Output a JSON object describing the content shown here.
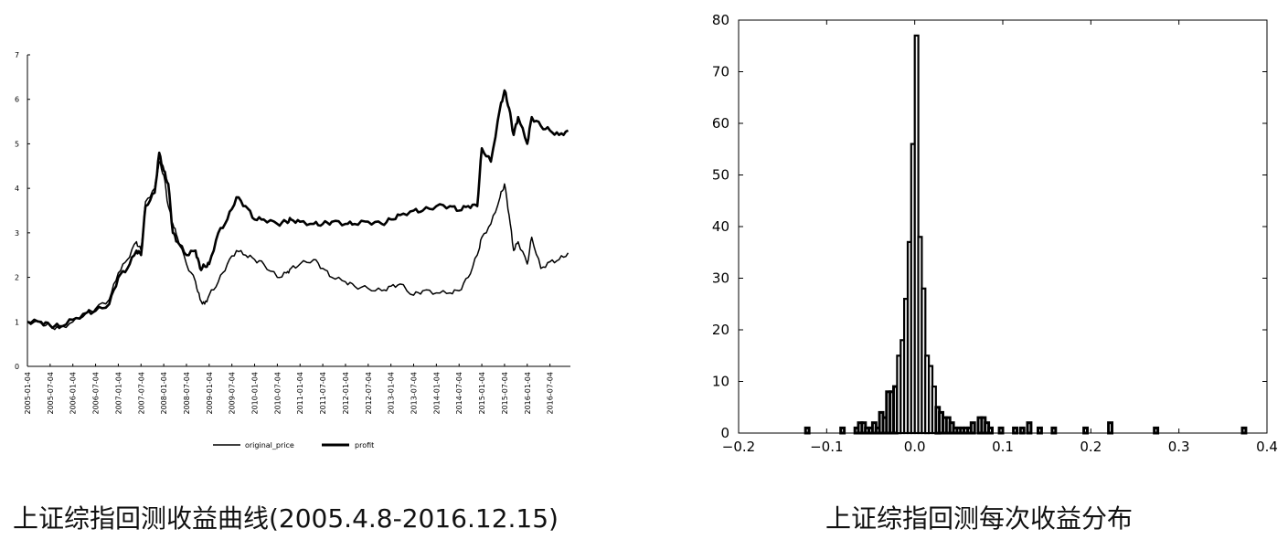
{
  "captions": {
    "left": "上证综指回测收益曲线(2005.4.8-2016.12.15)",
    "right": "上证综指回测每次收益分布"
  },
  "chart_data": [
    {
      "type": "line",
      "title": "",
      "xlabel": "",
      "ylabel": "",
      "ylim": [
        0,
        7
      ],
      "yticks": [
        "0",
        "1",
        "2",
        "3",
        "4",
        "5",
        "6",
        "7"
      ],
      "xtick_labels": [
        "2005-01-04",
        "2005-07-04",
        "2006-01-04",
        "2006-07-04",
        "2007-01-04",
        "2007-07-04",
        "2008-01-04",
        "2008-07-04",
        "2009-01-04",
        "2009-07-04",
        "2010-01-04",
        "2010-07-04",
        "2011-01-04",
        "2011-07-04",
        "2012-01-04",
        "2012-07-04",
        "2013-01-04",
        "2013-07-04",
        "2014-01-04",
        "2014-07-04",
        "2015-01-04",
        "2015-07-04",
        "2016-01-04",
        "2016-07-04"
      ],
      "legend": {
        "placement": "bottom-center",
        "entries": [
          "original_price",
          "profit"
        ]
      },
      "series": [
        {
          "name": "original_price",
          "x": [
            2005.0,
            2005.3,
            2005.5,
            2005.7,
            2006.0,
            2006.3,
            2006.5,
            2006.8,
            2007.0,
            2007.2,
            2007.4,
            2007.5,
            2007.6,
            2007.8,
            2007.9,
            2008.0,
            2008.1,
            2008.2,
            2008.3,
            2008.5,
            2008.7,
            2008.8,
            2008.9,
            2009.0,
            2009.2,
            2009.4,
            2009.6,
            2009.8,
            2010.0,
            2010.2,
            2010.5,
            2010.7,
            2010.8,
            2011.0,
            2011.3,
            2011.5,
            2011.7,
            2012.0,
            2012.2,
            2012.5,
            2012.8,
            2013.0,
            2013.2,
            2013.5,
            2013.7,
            2014.0,
            2014.3,
            2014.5,
            2014.7,
            2014.9,
            2015.0,
            2015.2,
            2015.4,
            2015.5,
            2015.6,
            2015.7,
            2015.8,
            2016.0,
            2016.1,
            2016.3,
            2016.5,
            2016.7,
            2016.9
          ],
          "y": [
            1.0,
            0.97,
            0.9,
            0.85,
            1.0,
            1.2,
            1.3,
            1.5,
            2.1,
            2.4,
            2.8,
            2.6,
            3.7,
            4.0,
            4.6,
            4.3,
            3.6,
            3.2,
            2.9,
            2.3,
            1.9,
            1.5,
            1.4,
            1.6,
            1.9,
            2.3,
            2.6,
            2.5,
            2.4,
            2.3,
            2.0,
            2.1,
            2.2,
            2.3,
            2.4,
            2.2,
            2.0,
            1.9,
            1.8,
            1.75,
            1.7,
            1.8,
            1.85,
            1.6,
            1.7,
            1.65,
            1.65,
            1.7,
            2.0,
            2.5,
            2.9,
            3.2,
            3.8,
            4.1,
            3.4,
            2.6,
            2.8,
            2.3,
            2.9,
            2.2,
            2.35,
            2.4,
            2.55
          ]
        },
        {
          "name": "profit",
          "x": [
            2005.0,
            2005.3,
            2005.5,
            2005.7,
            2006.0,
            2006.3,
            2006.5,
            2006.8,
            2007.0,
            2007.2,
            2007.4,
            2007.5,
            2007.6,
            2007.8,
            2007.9,
            2008.0,
            2008.1,
            2008.2,
            2008.3,
            2008.5,
            2008.7,
            2008.8,
            2008.9,
            2009.0,
            2009.2,
            2009.4,
            2009.6,
            2009.8,
            2010.0,
            2010.2,
            2010.5,
            2010.7,
            2010.8,
            2011.0,
            2011.3,
            2011.5,
            2011.7,
            2012.0,
            2012.2,
            2012.5,
            2012.8,
            2013.0,
            2013.2,
            2013.5,
            2013.7,
            2014.0,
            2014.3,
            2014.5,
            2014.7,
            2014.9,
            2015.0,
            2015.2,
            2015.4,
            2015.5,
            2015.6,
            2015.7,
            2015.8,
            2016.0,
            2016.1,
            2016.3,
            2016.5,
            2016.7,
            2016.9
          ],
          "y": [
            1.0,
            1.0,
            0.92,
            0.9,
            1.05,
            1.2,
            1.25,
            1.4,
            2.0,
            2.2,
            2.6,
            2.5,
            3.6,
            3.9,
            4.8,
            4.4,
            4.1,
            3.0,
            2.8,
            2.5,
            2.6,
            2.2,
            2.25,
            2.3,
            3.0,
            3.3,
            3.8,
            3.6,
            3.3,
            3.3,
            3.2,
            3.25,
            3.3,
            3.25,
            3.2,
            3.2,
            3.25,
            3.2,
            3.2,
            3.25,
            3.2,
            3.3,
            3.4,
            3.5,
            3.5,
            3.6,
            3.6,
            3.5,
            3.6,
            3.6,
            4.9,
            4.6,
            5.8,
            6.2,
            5.8,
            5.2,
            5.6,
            5.0,
            5.6,
            5.4,
            5.3,
            5.2,
            5.3
          ]
        }
      ]
    },
    {
      "type": "bar",
      "title": "",
      "xlabel": "",
      "ylabel": "",
      "xlim": [
        -0.2,
        0.4
      ],
      "ylim": [
        0,
        80
      ],
      "xticks": [
        "−0.2",
        "−0.1",
        "0.0",
        "0.1",
        "0.2",
        "0.3",
        "0.4"
      ],
      "yticks": [
        "0",
        "10",
        "20",
        "30",
        "40",
        "50",
        "60",
        "70",
        "80"
      ],
      "bin_width": 0.004,
      "bins": [
        {
          "x": -0.124,
          "y": 1
        },
        {
          "x": -0.084,
          "y": 1
        },
        {
          "x": -0.068,
          "y": 1
        },
        {
          "x": -0.064,
          "y": 2
        },
        {
          "x": -0.06,
          "y": 2
        },
        {
          "x": -0.056,
          "y": 1
        },
        {
          "x": -0.052,
          "y": 1
        },
        {
          "x": -0.048,
          "y": 2
        },
        {
          "x": -0.044,
          "y": 1
        },
        {
          "x": -0.04,
          "y": 4
        },
        {
          "x": -0.036,
          "y": 3
        },
        {
          "x": -0.032,
          "y": 8
        },
        {
          "x": -0.028,
          "y": 8
        },
        {
          "x": -0.024,
          "y": 9
        },
        {
          "x": -0.02,
          "y": 15
        },
        {
          "x": -0.016,
          "y": 18
        },
        {
          "x": -0.012,
          "y": 26
        },
        {
          "x": -0.008,
          "y": 37
        },
        {
          "x": -0.004,
          "y": 56
        },
        {
          "x": 0.0,
          "y": 77
        },
        {
          "x": 0.004,
          "y": 38
        },
        {
          "x": 0.008,
          "y": 28
        },
        {
          "x": 0.012,
          "y": 15
        },
        {
          "x": 0.016,
          "y": 13
        },
        {
          "x": 0.02,
          "y": 9
        },
        {
          "x": 0.024,
          "y": 5
        },
        {
          "x": 0.028,
          "y": 4
        },
        {
          "x": 0.032,
          "y": 3
        },
        {
          "x": 0.036,
          "y": 3
        },
        {
          "x": 0.04,
          "y": 2
        },
        {
          "x": 0.044,
          "y": 1
        },
        {
          "x": 0.048,
          "y": 1
        },
        {
          "x": 0.052,
          "y": 1
        },
        {
          "x": 0.056,
          "y": 1
        },
        {
          "x": 0.06,
          "y": 1
        },
        {
          "x": 0.064,
          "y": 2
        },
        {
          "x": 0.072,
          "y": 3
        },
        {
          "x": 0.076,
          "y": 3
        },
        {
          "x": 0.08,
          "y": 2
        },
        {
          "x": 0.084,
          "y": 1
        },
        {
          "x": 0.096,
          "y": 1
        },
        {
          "x": 0.112,
          "y": 1
        },
        {
          "x": 0.12,
          "y": 1
        },
        {
          "x": 0.128,
          "y": 2
        },
        {
          "x": 0.14,
          "y": 1
        },
        {
          "x": 0.156,
          "y": 1
        },
        {
          "x": 0.192,
          "y": 1
        },
        {
          "x": 0.22,
          "y": 2
        },
        {
          "x": 0.272,
          "y": 1
        },
        {
          "x": 0.372,
          "y": 1
        }
      ]
    }
  ]
}
